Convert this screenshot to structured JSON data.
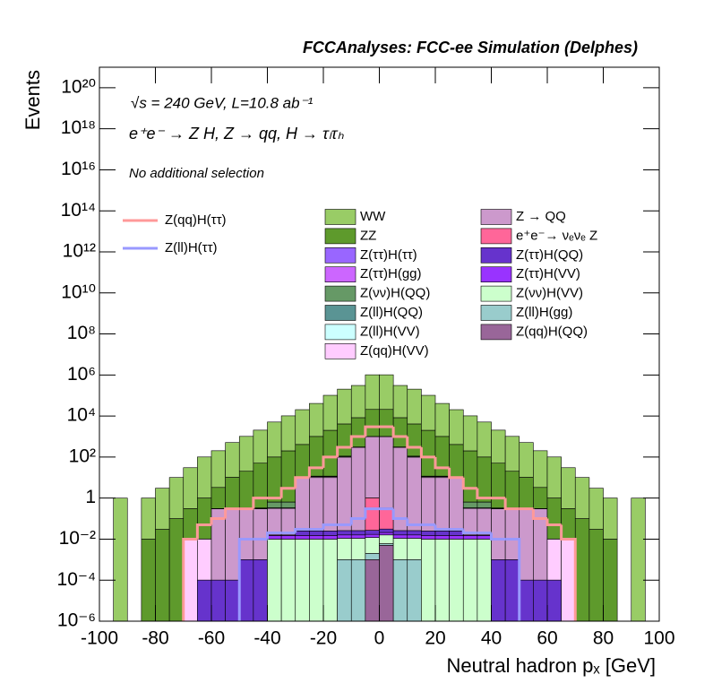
{
  "chart_data": {
    "type": "histogram",
    "title": "FCCAnalyses: FCC-ee Simulation (Delphes)",
    "annotations": [
      "√s = 240 GeV, L=10.8 ab⁻¹",
      "e⁺e⁻ → Z H, Z → qq, H → τₗτₕ",
      "No additional selection"
    ],
    "xlabel": "Neutral hadron pₓ [GeV]",
    "ylabel": "Events",
    "log_y": true,
    "xlim": [
      -100,
      100
    ],
    "ylim": [
      1e-06,
      1e+21
    ],
    "xticks": [
      -100,
      -80,
      -60,
      -40,
      -20,
      0,
      20,
      40,
      60,
      80,
      100
    ],
    "yticks": [
      {
        "value": 1e-06,
        "label": "10⁻⁶"
      },
      {
        "value": 0.0001,
        "label": "10⁻⁴"
      },
      {
        "value": 0.01,
        "label": "10⁻²"
      },
      1,
      {
        "value": 100,
        "label": "10²"
      },
      {
        "value": 10000,
        "label": "10⁴"
      },
      {
        "value": 1000000,
        "label": "10⁶"
      },
      {
        "value": 100000000,
        "label": "10⁸"
      },
      {
        "value": 10000000000,
        "label": "10¹⁰"
      },
      {
        "value": 1000000000000,
        "label": "10¹²"
      },
      {
        "value": 100000000000000,
        "label": "10¹⁴"
      },
      {
        "value": 10000000000000000,
        "label": "10¹⁶"
      },
      {
        "value": 1000000000000000000,
        "label": "10¹⁸"
      },
      {
        "value": 100000000000000000000,
        "label": "10²⁰"
      }
    ],
    "bins": [
      -100,
      -95,
      -90,
      -85,
      -80,
      -75,
      -70,
      -65,
      -60,
      -55,
      -50,
      -45,
      -40,
      -35,
      -30,
      -25,
      -20,
      -15,
      -10,
      -5,
      0,
      5,
      10,
      15,
      20,
      25,
      30,
      35,
      40,
      45,
      50,
      55,
      60,
      65,
      70,
      75,
      80,
      85,
      90,
      95,
      100
    ],
    "series": [
      {
        "name": "WW",
        "color": "#99cc66",
        "values": [
          null,
          1,
          null,
          1,
          3,
          10,
          30,
          100,
          200,
          500,
          1000,
          2000,
          5000,
          10000,
          20000,
          40000,
          100000,
          200000,
          300000,
          1000000,
          1000000,
          300000,
          200000,
          100000,
          40000,
          20000,
          10000,
          5000,
          2000,
          1000,
          500,
          200,
          100,
          30,
          10,
          3,
          1,
          null,
          1,
          null
        ]
      },
      {
        "name": "ZZ",
        "color": "#5e9a2c",
        "values": [
          null,
          null,
          null,
          0.01,
          0.03,
          0.1,
          0.3,
          1,
          3,
          10,
          20,
          50,
          100,
          200,
          400,
          1000,
          2000,
          4000,
          8000,
          20000,
          20000,
          8000,
          4000,
          2000,
          1000,
          400,
          200,
          100,
          50,
          20,
          10,
          3,
          1,
          0.3,
          0.1,
          0.03,
          0.01,
          null,
          null,
          null
        ]
      },
      {
        "name": "Z(ττ)H(ττ)",
        "color": "#9966ff",
        "values": [
          null,
          null,
          null,
          null,
          null,
          null,
          null,
          null,
          null,
          0.01,
          0.01,
          0.01,
          0.01,
          0.01,
          0.01,
          0.3,
          0.3,
          0.3,
          0.3,
          0.3,
          0.3,
          0.3,
          0.3,
          0.3,
          0.3,
          0.01,
          0.01,
          0.01,
          0.01,
          0.01,
          0.01,
          null,
          null,
          null,
          null,
          null,
          null,
          null,
          null,
          null
        ]
      },
      {
        "name": "Z(ττ)H(gg)",
        "color": "#cc66ff",
        "values": [
          null,
          null,
          null,
          null,
          null,
          null,
          null,
          null,
          null,
          null,
          null,
          null,
          null,
          null,
          0.05,
          0.05,
          0.05,
          0.05,
          0.05,
          0.05,
          0.05,
          0.05,
          0.05,
          0.05,
          0.05,
          0.05,
          null,
          null,
          null,
          null,
          null,
          null,
          null,
          null,
          null,
          null,
          null,
          null,
          null,
          null
        ]
      },
      {
        "name": "Z(νν)H(QQ)",
        "color": "#669966",
        "values": [
          null,
          null,
          null,
          null,
          null,
          null,
          null,
          null,
          null,
          null,
          null,
          null,
          0.3,
          0.3,
          0.3,
          0.3,
          0.3,
          10,
          10,
          10,
          10,
          10,
          10,
          0.3,
          0.3,
          0.3,
          0.3,
          0.3,
          null,
          null,
          null,
          null,
          null,
          null,
          null,
          null,
          null,
          null,
          null,
          null
        ]
      },
      {
        "name": "Z(ll)H(QQ)",
        "color": "#5a9494",
        "values": [
          null,
          null,
          null,
          null,
          null,
          null,
          null,
          0.0001,
          0.0001,
          0.0001,
          0.0001,
          null,
          null,
          null,
          0.1,
          0.1,
          0.1,
          0.1,
          0.1,
          0.1,
          0.1,
          0.1,
          0.1,
          0.1,
          0.1,
          0.1,
          null,
          null,
          null,
          0.0001,
          0.0001,
          0.0001,
          0.0001,
          null,
          null,
          null,
          null,
          null,
          null,
          null
        ]
      },
      {
        "name": "Z(ll)H(VV)",
        "color": "#ccffff",
        "values": [
          null,
          null,
          null,
          null,
          null,
          null,
          null,
          null,
          null,
          null,
          0.01,
          0.01,
          0.01,
          0.01,
          null,
          null,
          null,
          null,
          null,
          null,
          null,
          null,
          null,
          null,
          null,
          null,
          0.01,
          0.01,
          0.01,
          0.01,
          null,
          null,
          null,
          null,
          null,
          null,
          null,
          null,
          null,
          null
        ]
      },
      {
        "name": "Z(qq)H(VV)",
        "color": "#ffccff",
        "values": [
          null,
          null,
          null,
          null,
          null,
          null,
          0.01,
          0.01,
          0.01,
          0.01,
          0.01,
          0.01,
          0.01,
          0.01,
          0.01,
          1,
          1,
          1,
          1,
          1,
          1,
          1,
          1,
          1,
          1,
          0.01,
          0.01,
          0.01,
          0.01,
          0.01,
          0.01,
          0.01,
          0.01,
          0.01,
          null,
          null,
          null,
          null,
          null,
          null
        ]
      },
      {
        "name": "Z → QQ",
        "color": "#cc99cc",
        "values": [
          null,
          null,
          null,
          null,
          null,
          null,
          null,
          null,
          0.3,
          0.3,
          0.3,
          0.3,
          0.3,
          0.3,
          10,
          10,
          10,
          100,
          300,
          1000,
          1000,
          300,
          100,
          10,
          10,
          10,
          0.3,
          0.3,
          0.3,
          0.3,
          0.3,
          0.3,
          null,
          null,
          null,
          null,
          null,
          null,
          null,
          null
        ]
      },
      {
        "name": "e⁺e⁻→ νₑνₑ Z",
        "color": "#ff6699",
        "values": [
          null,
          null,
          null,
          null,
          null,
          null,
          null,
          null,
          null,
          null,
          null,
          null,
          null,
          null,
          null,
          null,
          null,
          null,
          null,
          1,
          0.3,
          null,
          null,
          null,
          null,
          null,
          null,
          null,
          null,
          null,
          null,
          null,
          null,
          null,
          null,
          null,
          null,
          null,
          null,
          null
        ]
      },
      {
        "name": "Z(ττ)H(QQ)",
        "color": "#6633cc",
        "values": [
          null,
          null,
          null,
          null,
          null,
          null,
          null,
          0.0001,
          0.0001,
          0.0001,
          0.001,
          0.001,
          0.001,
          0.001,
          0.01,
          0.01,
          0.01,
          0.01,
          0.01,
          0.01,
          0.01,
          0.01,
          0.01,
          0.01,
          0.01,
          0.01,
          0.001,
          0.001,
          0.001,
          0.001,
          0.0001,
          0.0001,
          0.0001,
          null,
          null,
          null,
          null,
          null,
          null,
          null
        ]
      },
      {
        "name": "Z(ττ)H(VV)",
        "color": "#9933ff",
        "values": [
          null,
          null,
          null,
          null,
          null,
          null,
          null,
          null,
          null,
          null,
          null,
          null,
          0.005,
          0.005,
          0.005,
          0.005,
          0.005,
          0.005,
          0.005,
          0.005,
          0.005,
          0.005,
          0.005,
          0.005,
          0.005,
          0.005,
          0.005,
          0.005,
          null,
          null,
          null,
          null,
          null,
          null,
          null,
          null,
          null,
          null,
          null,
          null
        ]
      },
      {
        "name": "Z(νν)H(VV)",
        "color": "#ccffcc",
        "values": [
          null,
          null,
          null,
          null,
          null,
          null,
          null,
          null,
          null,
          null,
          null,
          null,
          0.01,
          0.01,
          0.01,
          0.01,
          0.01,
          0.01,
          0.01,
          0.01,
          0.01,
          0.01,
          0.01,
          0.01,
          0.01,
          0.01,
          0.01,
          0.01,
          null,
          null,
          null,
          null,
          null,
          null,
          null,
          null,
          null,
          null,
          null,
          null
        ]
      },
      {
        "name": "Z(ll)H(gg)",
        "color": "#99cccc",
        "values": [
          null,
          null,
          null,
          null,
          null,
          null,
          null,
          null,
          null,
          null,
          null,
          null,
          null,
          null,
          null,
          null,
          null,
          0.001,
          0.001,
          0.001,
          0.001,
          0.001,
          0.001,
          null,
          null,
          null,
          null,
          null,
          null,
          null,
          null,
          null,
          null,
          null,
          null,
          null,
          null,
          null,
          null,
          null
        ]
      },
      {
        "name": "Z(qq)H(QQ)",
        "color": "#996699",
        "values": [
          null,
          null,
          null,
          null,
          null,
          null,
          null,
          null,
          null,
          null,
          null,
          null,
          null,
          null,
          null,
          null,
          null,
          null,
          null,
          0.001,
          0.005,
          null,
          null,
          null,
          null,
          null,
          null,
          null,
          null,
          null,
          null,
          null,
          null,
          null,
          null,
          null,
          null,
          null,
          null,
          null
        ]
      }
    ],
    "lines": [
      {
        "name": "Z(qq)H(ττ)",
        "color": "#ff9999",
        "values": [
          null,
          null,
          null,
          null,
          null,
          null,
          0.01,
          0.05,
          0.1,
          0.3,
          0.3,
          1,
          1,
          3,
          10,
          30,
          100,
          300,
          1000,
          3000,
          3000,
          1000,
          300,
          100,
          30,
          10,
          3,
          1,
          1,
          0.3,
          0.3,
          0.1,
          0.05,
          0.01,
          null,
          null,
          null,
          null,
          null,
          null
        ]
      },
      {
        "name": "Z(ll)H(ττ)",
        "color": "#9999ff",
        "values": [
          null,
          null,
          null,
          null,
          null,
          null,
          null,
          null,
          null,
          null,
          0.01,
          0.01,
          0.02,
          0.02,
          0.03,
          0.03,
          0.05,
          0.05,
          0.1,
          0.3,
          0.3,
          0.1,
          0.05,
          0.05,
          0.03,
          0.03,
          0.02,
          0.02,
          0.01,
          0.01,
          null,
          null,
          null,
          null,
          null,
          null,
          null,
          null,
          null,
          null
        ]
      }
    ]
  }
}
